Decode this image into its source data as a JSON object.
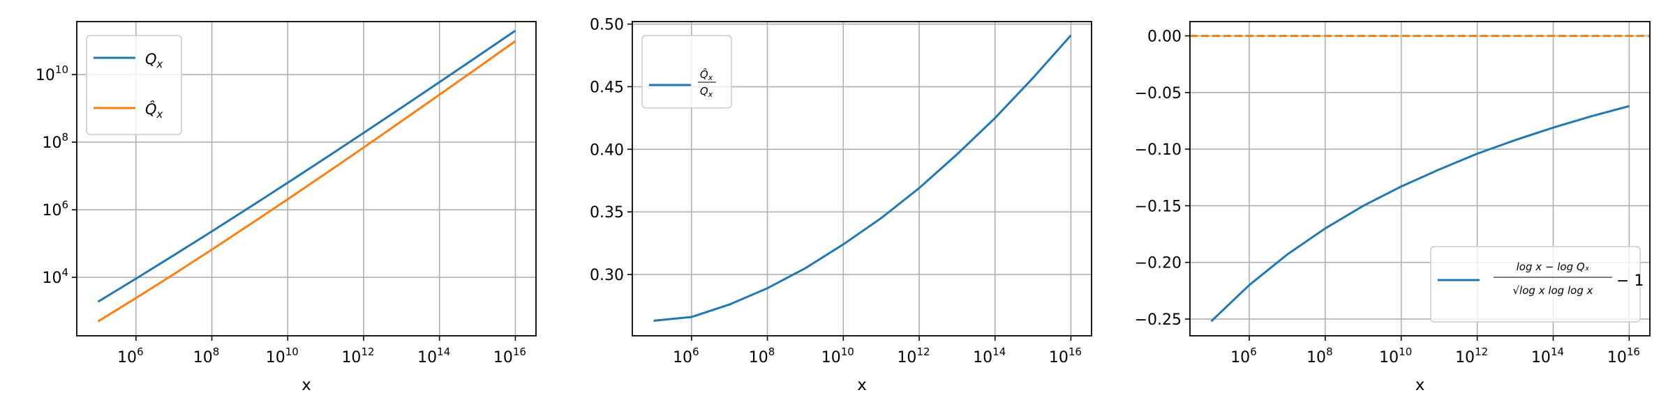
{
  "chart_data": [
    {
      "type": "line",
      "xscale": "log",
      "yscale": "log",
      "xlabel": "x",
      "ylabel": "",
      "xlim": [
        27500.0,
        3.5e+16
      ],
      "ylim": [
        186,
        370000000000.0
      ],
      "xticks": [
        6,
        8,
        10,
        12,
        14,
        16
      ],
      "yticks": [
        4,
        6,
        8,
        10
      ],
      "grid": true,
      "legend_position": "upper-left",
      "x": [
        100000.0,
        1000000.0,
        10000000.0,
        100000000.0,
        1000000000.0,
        10000000000.0,
        100000000000.0,
        1000000000000.0,
        10000000000000.0,
        100000000000000.0,
        1000000000000000.0,
        1e+16
      ],
      "series": [
        {
          "name": "Qₓ",
          "name_main": "Q",
          "name_sub": "x",
          "color": "#1f77b4",
          "values": [
            1892,
            9120,
            45100,
            229000,
            1190000,
            6300000,
            34200000,
            188000000,
            1050000000,
            5970000000,
            34400000000,
            200000000000
          ]
        },
        {
          "name": "Q̂ₓ",
          "name_main": "Q̂",
          "name_sub": "x",
          "color": "#ff7f0e",
          "values": [
            498,
            2426,
            12450,
            66200,
            363000,
            2040000,
            11800000,
            69400000,
            416000000,
            2540000000,
            15700000000,
            98000000000
          ]
        }
      ]
    },
    {
      "type": "line",
      "xscale": "log",
      "yscale": "linear",
      "xlabel": "x",
      "ylabel": "",
      "xlim": [
        27500.0,
        3.5e+16
      ],
      "ylim": [
        0.251,
        0.502
      ],
      "xticks": [
        6,
        8,
        10,
        12,
        14,
        16
      ],
      "yticks": [
        "0.30",
        "0.35",
        "0.40",
        "0.45",
        "0.50"
      ],
      "grid": true,
      "legend_position": "upper-left",
      "x": [
        100000.0,
        1000000.0,
        10000000.0,
        100000000.0,
        1000000000.0,
        10000000000.0,
        100000000000.0,
        1000000000000.0,
        10000000000000.0,
        100000000000000.0,
        1000000000000000.0,
        1e+16
      ],
      "series": [
        {
          "name": "Q̂ₓ / Qₓ",
          "num": "Q̂",
          "den": "Q",
          "sub": "x",
          "color": "#1f77b4",
          "values": [
            0.263,
            0.266,
            0.276,
            0.289,
            0.305,
            0.324,
            0.345,
            0.369,
            0.396,
            0.425,
            0.457,
            0.491
          ]
        }
      ]
    },
    {
      "type": "line",
      "xscale": "log",
      "yscale": "linear",
      "xlabel": "x",
      "ylabel": "",
      "xlim": [
        27500.0,
        3.5e+16
      ],
      "ylim": [
        -0.2648,
        0.0126
      ],
      "xticks": [
        6,
        8,
        10,
        12,
        14,
        16
      ],
      "yticks": [
        "−0.25",
        "−0.20",
        "−0.15",
        "−0.10",
        "−0.05",
        "0.00"
      ],
      "grid": true,
      "legend_position": "lower-right",
      "x": [
        100000.0,
        1000000.0,
        10000000.0,
        100000000.0,
        1000000000.0,
        10000000000.0,
        100000000000.0,
        1000000000000.0,
        10000000000000.0,
        100000000000000.0,
        1000000000000000.0,
        1e+16
      ],
      "series": [
        {
          "name": "(log x − log Qₓ)/√(log x log log x) − 1",
          "num": "log x − log Qₓ",
          "den": "√log x log log x",
          "tail": "− 1",
          "color": "#1f77b4",
          "values": [
            -0.252,
            -0.22,
            -0.193,
            -0.17,
            -0.15,
            -0.133,
            -0.118,
            -0.104,
            -0.092,
            -0.081,
            -0.071,
            -0.062
          ]
        }
      ],
      "reference_line": {
        "y": 0.0,
        "style": "dashed",
        "color": "#ff7f0e"
      }
    }
  ]
}
